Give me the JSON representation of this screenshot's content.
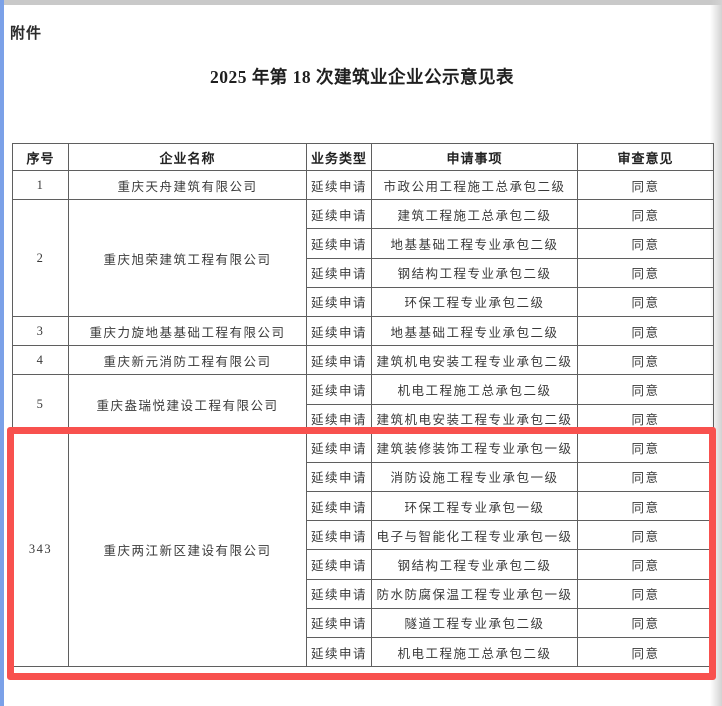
{
  "page": {
    "attachment_label": "附件",
    "title": "2025 年第 18 次建筑业企业公示意见表"
  },
  "accents": {
    "highlight_border": "#f8514e",
    "left_edge": "#7ba1e8"
  },
  "table": {
    "headers": [
      "序号",
      "企业名称",
      "业务类型",
      "申请事项",
      "审查意见"
    ],
    "groups": [
      {
        "seq": "1",
        "company": "重庆天舟建筑有限公司",
        "highlighted": false,
        "items": [
          {
            "type": "延续申请",
            "matter": "市政公用工程施工总承包二级",
            "opinion": "同意"
          }
        ]
      },
      {
        "seq": "2",
        "company": "重庆旭荣建筑工程有限公司",
        "highlighted": false,
        "items": [
          {
            "type": "延续申请",
            "matter": "建筑工程施工总承包二级",
            "opinion": "同意"
          },
          {
            "type": "延续申请",
            "matter": "地基基础工程专业承包二级",
            "opinion": "同意"
          },
          {
            "type": "延续申请",
            "matter": "钢结构工程专业承包二级",
            "opinion": "同意"
          },
          {
            "type": "延续申请",
            "matter": "环保工程专业承包二级",
            "opinion": "同意"
          }
        ]
      },
      {
        "seq": "3",
        "company": "重庆力旋地基基础工程有限公司",
        "highlighted": false,
        "items": [
          {
            "type": "延续申请",
            "matter": "地基基础工程专业承包二级",
            "opinion": "同意"
          }
        ]
      },
      {
        "seq": "4",
        "company": "重庆新元消防工程有限公司",
        "highlighted": false,
        "items": [
          {
            "type": "延续申请",
            "matter": "建筑机电安装工程专业承包二级",
            "opinion": "同意"
          }
        ]
      },
      {
        "seq": "5",
        "company": "重庆盎瑞悦建设工程有限公司",
        "highlighted": false,
        "items": [
          {
            "type": "延续申请",
            "matter": "机电工程施工总承包二级",
            "opinion": "同意"
          },
          {
            "type": "延续申请",
            "matter": "建筑机电安装工程专业承包二级",
            "opinion": "同意"
          }
        ]
      },
      {
        "seq": "343",
        "company": "重庆两江新区建设有限公司",
        "highlighted": true,
        "items": [
          {
            "type": "延续申请",
            "matter": "建筑装修装饰工程专业承包一级",
            "opinion": "同意"
          },
          {
            "type": "延续申请",
            "matter": "消防设施工程专业承包一级",
            "opinion": "同意"
          },
          {
            "type": "延续申请",
            "matter": "环保工程专业承包一级",
            "opinion": "同意"
          },
          {
            "type": "延续申请",
            "matter": "电子与智能化工程专业承包一级",
            "opinion": "同意"
          },
          {
            "type": "延续申请",
            "matter": "钢结构工程专业承包二级",
            "opinion": "同意"
          },
          {
            "type": "延续申请",
            "matter": "防水防腐保温工程专业承包一级",
            "opinion": "同意"
          },
          {
            "type": "延续申请",
            "matter": "隧道工程专业承包二级",
            "opinion": "同意"
          },
          {
            "type": "延续申请",
            "matter": "机电工程施工总承包二级",
            "opinion": "同意"
          }
        ]
      }
    ]
  }
}
